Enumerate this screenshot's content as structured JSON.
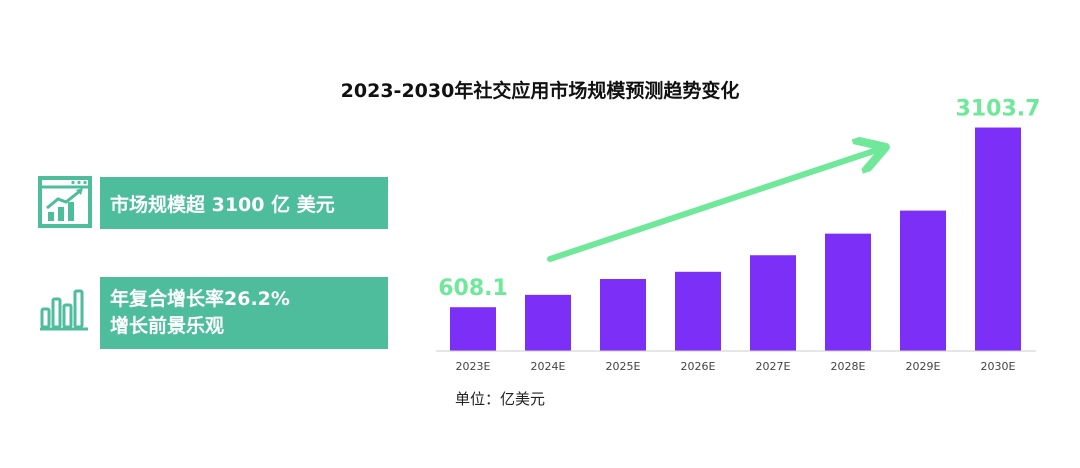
{
  "highlights": [
    {
      "text": "市场规模超 3100 亿 美元",
      "icon": "growth-chart-icon"
    },
    {
      "line1": "年复合增长率26.2%",
      "line2": "增长前景乐观",
      "icon": "bar-chart-icon"
    }
  ],
  "unit_label": "单位：亿美元",
  "colors": {
    "bar": "#7b2ff7",
    "accent": "#6fe89a",
    "panel": "#4dbd9b"
  },
  "chart_data": {
    "type": "bar",
    "title": "2023-2030年社交应用市场规模预测趋势变化",
    "categories": [
      "2023E",
      "2024E",
      "2025E",
      "2026E",
      "2027E",
      "2028E",
      "2029E",
      "2030E"
    ],
    "values": [
      608.1,
      780,
      1000,
      1100,
      1330,
      1630,
      1950,
      3103.7
    ],
    "data_labels": [
      {
        "category": "2023E",
        "text": "608.1"
      },
      {
        "category": "2030E",
        "text": "3103.7"
      }
    ],
    "ylim": [
      0,
      3500
    ],
    "grid": false,
    "trend_arrow": true
  }
}
